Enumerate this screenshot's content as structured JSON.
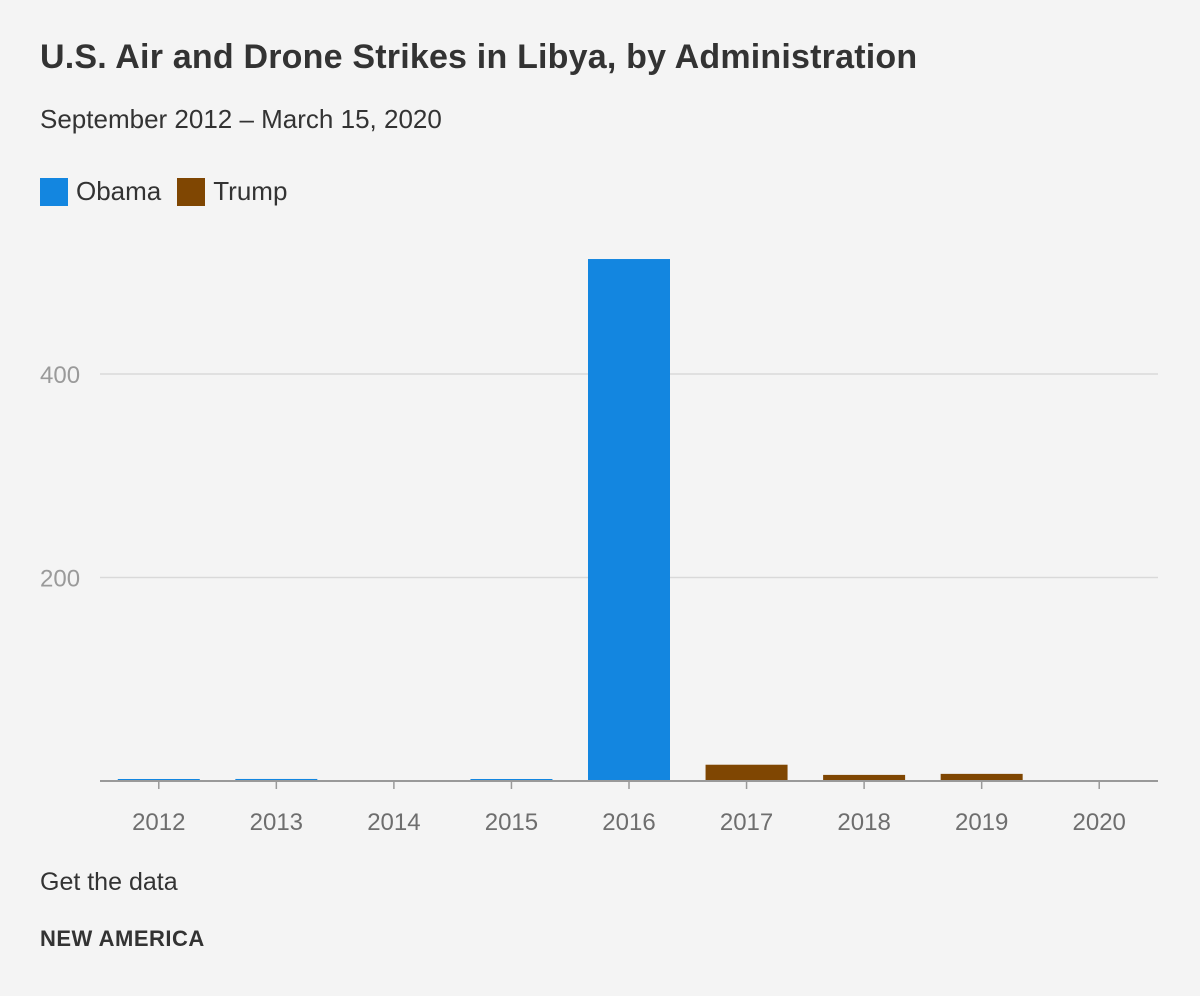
{
  "title": "U.S. Air and Drone Strikes in Libya, by Administration",
  "subtitle": "September 2012 – March 15, 2020",
  "legend": [
    {
      "label": "Obama",
      "color": "#1386e0"
    },
    {
      "label": "Trump",
      "color": "#7f4602"
    }
  ],
  "chart_data": {
    "type": "bar",
    "title": "U.S. Air and Drone Strikes in Libya, by Administration",
    "subtitle": "September 2012 – March 15, 2020",
    "categories": [
      "2012",
      "2013",
      "2014",
      "2015",
      "2016",
      "2017",
      "2018",
      "2019",
      "2020"
    ],
    "values": [
      1,
      2,
      0,
      1,
      513,
      16,
      6,
      7,
      0
    ],
    "bar_series": [
      "Obama",
      "Obama",
      "Obama",
      "Obama",
      "Obama",
      "Trump",
      "Trump",
      "Trump",
      "Trump"
    ],
    "series_colors": {
      "Obama": "#1386e0",
      "Trump": "#7f4602"
    },
    "yticks": [
      400,
      200
    ],
    "ylim": [
      0,
      550
    ],
    "xlabel": "",
    "ylabel": "",
    "grid": true,
    "legend_position": "top-left"
  },
  "footer": {
    "get_data": "Get the data",
    "brand": "NEW AMERICA"
  }
}
